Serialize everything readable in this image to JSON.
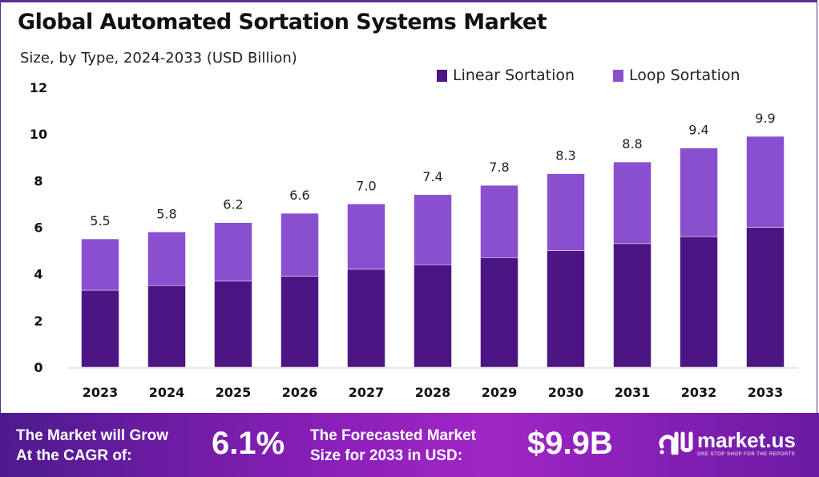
{
  "chart_data": {
    "type": "bar",
    "stacked": true,
    "title": "Global Automated Sortation Systems Market",
    "subtitle": "Size, by Type, 2024-2033 (USD Billion)",
    "categories": [
      "2023",
      "2024",
      "2025",
      "2026",
      "2027",
      "2028",
      "2029",
      "2030",
      "2031",
      "2032",
      "2033"
    ],
    "series": [
      {
        "name": "Linear Sortation",
        "color": "#4b1683",
        "values": [
          3.3,
          3.5,
          3.7,
          3.9,
          4.2,
          4.4,
          4.7,
          5.0,
          5.3,
          5.6,
          6.0
        ]
      },
      {
        "name": "Loop Sortation",
        "color": "#8a4fcf",
        "values": [
          2.2,
          2.3,
          2.5,
          2.7,
          2.8,
          3.0,
          3.1,
          3.3,
          3.5,
          3.8,
          3.9
        ]
      }
    ],
    "totals": [
      "5.5",
      "5.8",
      "6.2",
      "6.6",
      "7.0",
      "7.4",
      "7.8",
      "8.3",
      "8.8",
      "9.4",
      "9.9"
    ],
    "ylim": [
      0,
      12
    ],
    "yticks": [
      "0",
      "2",
      "4",
      "6",
      "8",
      "10",
      "12"
    ],
    "grid": false,
    "legend": "top-right"
  },
  "footer": {
    "cagr_label_1": "The Market will Grow",
    "cagr_label_2": "At the CAGR of:",
    "cagr_value": "6.1%",
    "forecast_label_1": "The Forecasted Market",
    "forecast_label_2": "Size for 2033 in USD:",
    "forecast_value": "$9.9B",
    "logo_text": "market.us",
    "logo_tagline": "ONE STOP SHOP FOR THE REPORTS"
  }
}
